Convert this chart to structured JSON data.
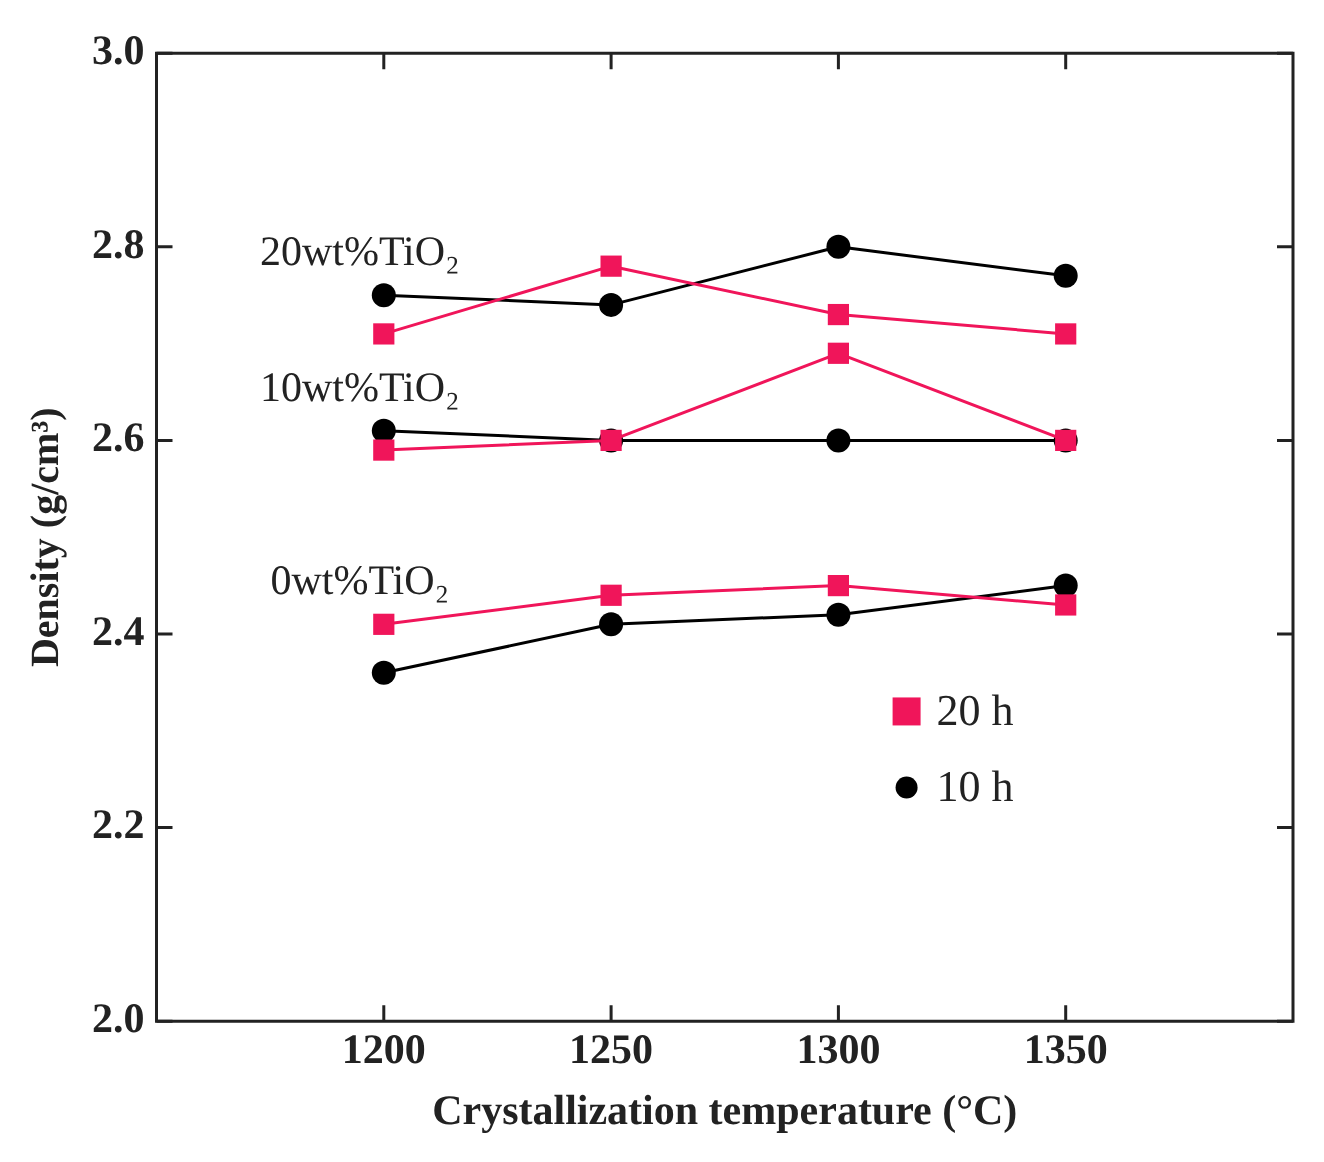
{
  "chart_data": {
    "type": "line",
    "xlabel": "Crystallization temperature (°C)",
    "ylabel": "Density (g/cm³)",
    "x": [
      1200,
      1250,
      1300,
      1350
    ],
    "series": [
      {
        "name": "20 h",
        "color": "#f0155a",
        "marker": "square",
        "values": [
          2.41,
          2.44,
          2.45,
          2.43
        ]
      },
      {
        "name": "10 h",
        "color": "#000000",
        "marker": "circle",
        "values": [
          2.36,
          2.41,
          2.42,
          2.45
        ]
      },
      {
        "color": "#f0155a",
        "marker": "square",
        "values": [
          2.59,
          2.6,
          2.69,
          2.6
        ]
      },
      {
        "color": "#000000",
        "marker": "circle",
        "values": [
          2.61,
          2.6,
          2.6,
          2.6
        ]
      },
      {
        "color": "#f0155a",
        "marker": "square",
        "values": [
          2.71,
          2.78,
          2.73,
          2.71
        ]
      },
      {
        "color": "#000000",
        "marker": "circle",
        "values": [
          2.75,
          2.74,
          2.8,
          2.77
        ]
      }
    ],
    "annotations": [
      "0wt%TiO₂",
      "10wt%TiO₂",
      "20wt%TiO₂"
    ],
    "xlim": [
      1150,
      1400
    ],
    "xticks": [
      1200,
      1250,
      1300,
      1350
    ],
    "ylim": [
      2.0,
      3.0
    ],
    "yticks": [
      {
        "value": 2.0,
        "label": "2.0"
      },
      2.2,
      2.4,
      2.6,
      2.8,
      {
        "value": 3.0,
        "label": "3.0"
      }
    ],
    "grid": false,
    "legend": "right",
    "line_style": "solid"
  }
}
